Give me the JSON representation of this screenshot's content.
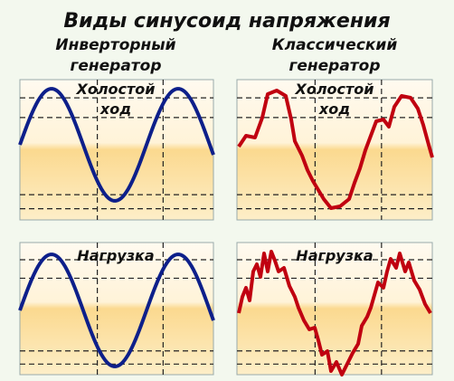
{
  "title": "Виды синусоид напряжения",
  "columns": [
    {
      "heading": [
        "Инверторный",
        "генератор"
      ]
    },
    {
      "heading": [
        "Классический",
        "генератор"
      ]
    }
  ],
  "rows": [
    {
      "label": [
        "Холостой",
        "ход"
      ]
    },
    {
      "label": [
        "Нагрузка"
      ]
    }
  ]
}
